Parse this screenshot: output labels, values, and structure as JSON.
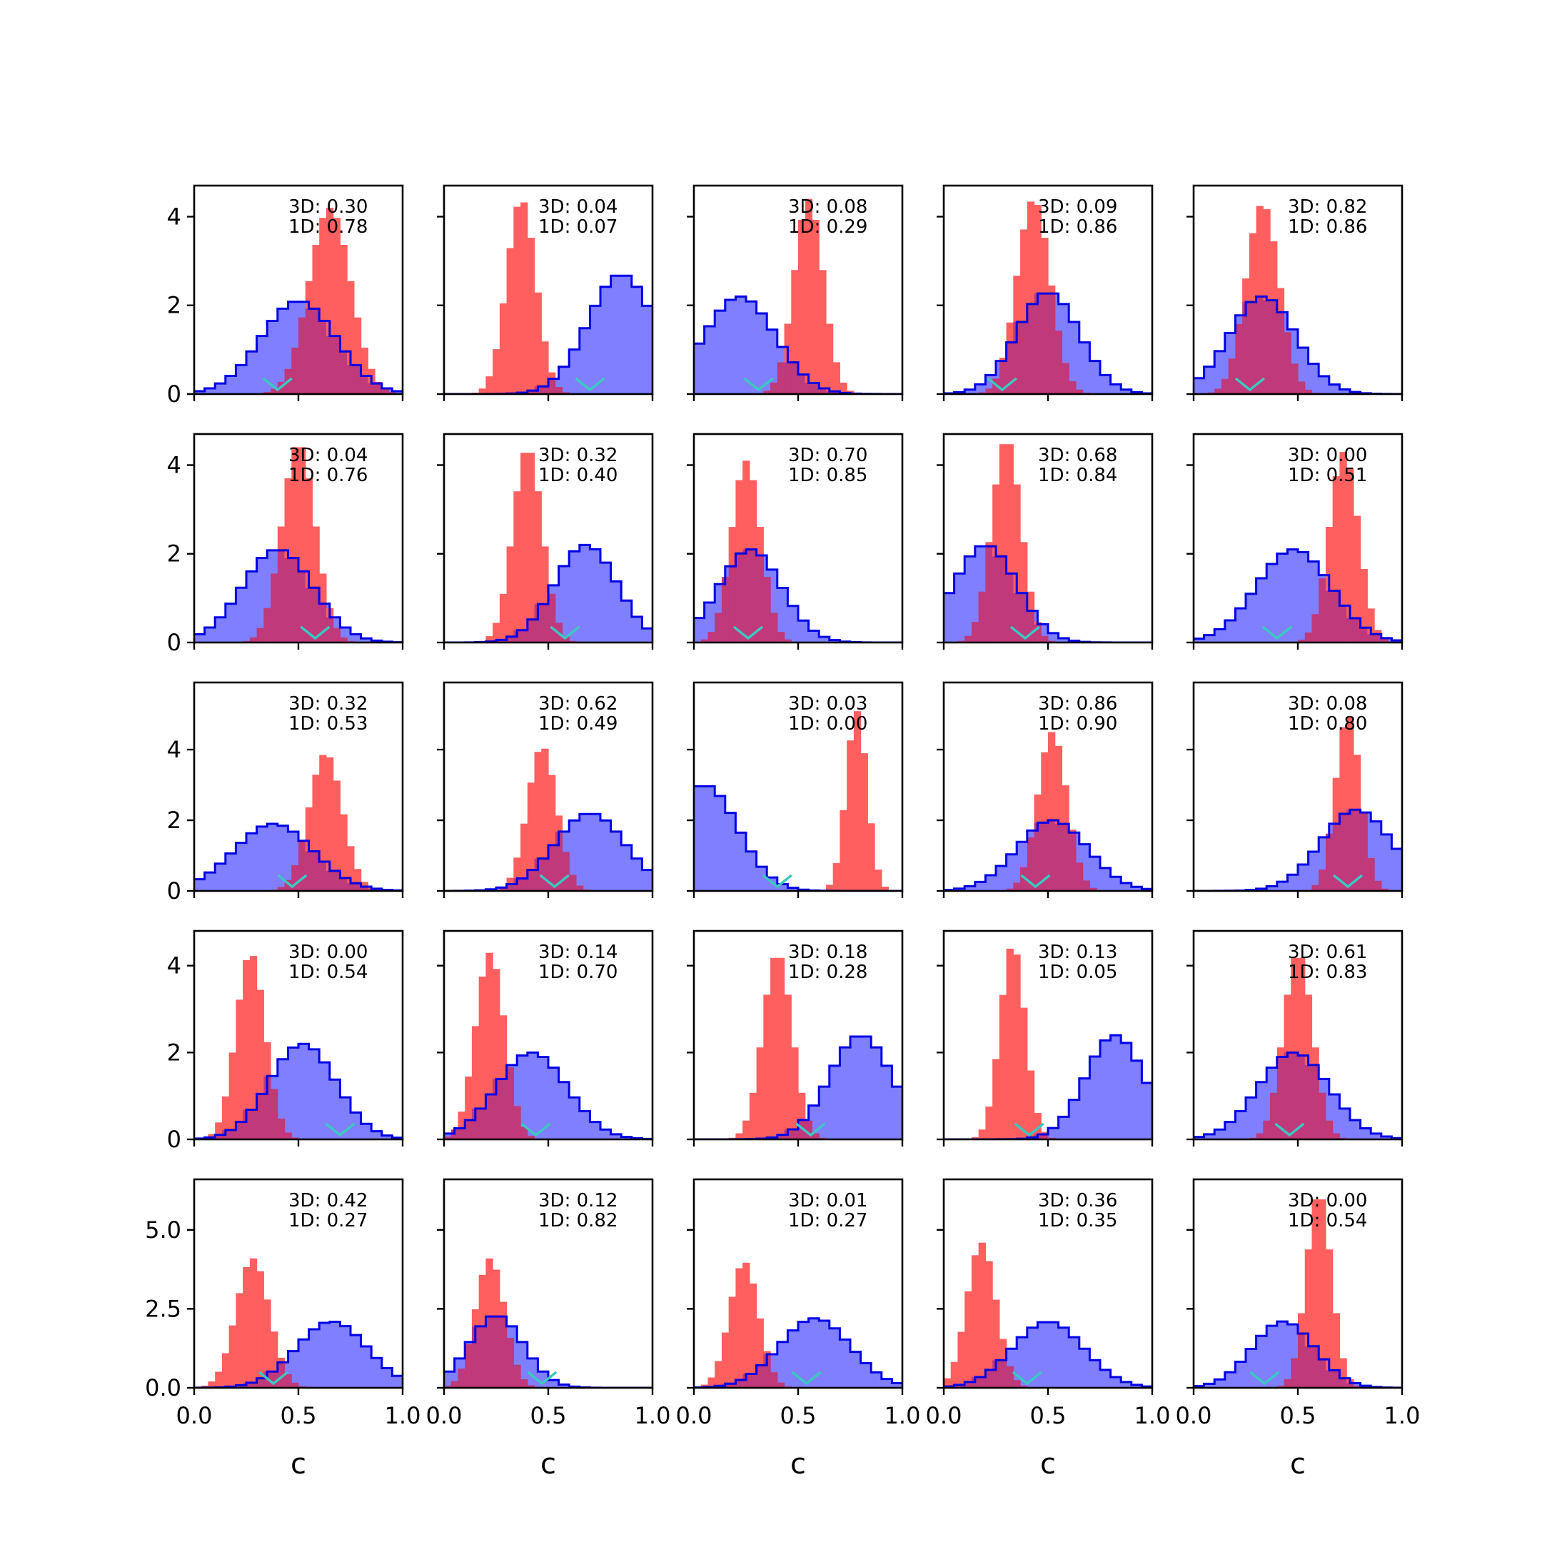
{
  "colors": {
    "blue_fill": "#7f7fff",
    "blue_edge": "#0000e6",
    "red_fill": "#ff5f5f",
    "overlap": "#c0397a",
    "overlap_edge": "#7a0a7a",
    "marker": "#3cc8c0"
  },
  "chart_data": {
    "type": "histogram-grid",
    "rows": 5,
    "cols": 5,
    "xlabel": "c",
    "xlim": [
      0,
      1
    ],
    "xticks": [
      "0.0",
      "0.5",
      "1.0"
    ],
    "row_axes": [
      {
        "ylim": [
          0,
          4.7
        ],
        "yticks": [
          "0",
          "2",
          "4"
        ],
        "ytick_values": [
          0,
          2,
          4
        ]
      },
      {
        "ylim": [
          0,
          4.7
        ],
        "yticks": [
          "0",
          "2",
          "4"
        ],
        "ytick_values": [
          0,
          2,
          4
        ]
      },
      {
        "ylim": [
          0,
          5.9
        ],
        "yticks": [
          "0",
          "2",
          "4"
        ],
        "ytick_values": [
          0,
          2,
          4
        ]
      },
      {
        "ylim": [
          0,
          4.8
        ],
        "yticks": [
          "0",
          "2",
          "4"
        ],
        "ytick_values": [
          0,
          2,
          4
        ]
      },
      {
        "ylim": [
          0,
          6.6
        ],
        "yticks": [
          "0.0",
          "2.5",
          "5.0"
        ],
        "ytick_values": [
          0,
          2.5,
          5
        ]
      }
    ],
    "series": [
      {
        "name": "3D",
        "color": "blue",
        "style": "step-filled"
      },
      {
        "name": "1D",
        "color": "red",
        "style": "bar-filled"
      }
    ],
    "panels": [
      {
        "label3d": "3D: 0.30",
        "label1d": "1D: 0.78",
        "blue": {
          "mu": 0.5,
          "sd": 0.18,
          "peak": 2.1
        },
        "red": {
          "mu": 0.65,
          "sd": 0.1,
          "peak": 4.2
        },
        "marker": 0.4
      },
      {
        "label3d": "3D: 0.04",
        "label1d": "1D: 0.07",
        "blue": {
          "mu": 0.85,
          "sd": 0.16,
          "peak": 2.7
        },
        "red": {
          "mu": 0.37,
          "sd": 0.07,
          "peak": 4.4
        },
        "marker": 0.7
      },
      {
        "label3d": "3D: 0.08",
        "label1d": "1D: 0.29",
        "blue": {
          "mu": 0.22,
          "sd": 0.17,
          "peak": 2.2
        },
        "red": {
          "mu": 0.55,
          "sd": 0.07,
          "peak": 4.4
        },
        "marker": 0.31
      },
      {
        "label3d": "3D: 0.09",
        "label1d": "1D: 0.86",
        "blue": {
          "mu": 0.5,
          "sd": 0.15,
          "peak": 2.3
        },
        "red": {
          "mu": 0.43,
          "sd": 0.08,
          "peak": 4.4
        },
        "marker": 0.28
      },
      {
        "label3d": "3D: 0.82",
        "label1d": "1D: 0.86",
        "blue": {
          "mu": 0.33,
          "sd": 0.16,
          "peak": 2.2
        },
        "red": {
          "mu": 0.33,
          "sd": 0.08,
          "peak": 4.3
        },
        "marker": 0.27
      },
      {
        "label3d": "3D: 0.04",
        "label1d": "1D: 0.76",
        "blue": {
          "mu": 0.4,
          "sd": 0.17,
          "peak": 2.1
        },
        "red": {
          "mu": 0.5,
          "sd": 0.08,
          "peak": 4.5
        },
        "marker": 0.58
      },
      {
        "label3d": "3D: 0.32",
        "label1d": "1D: 0.40",
        "blue": {
          "mu": 0.68,
          "sd": 0.15,
          "peak": 2.2
        },
        "red": {
          "mu": 0.4,
          "sd": 0.07,
          "peak": 4.4
        },
        "marker": 0.58
      },
      {
        "label3d": "3D: 0.70",
        "label1d": "1D: 0.85",
        "blue": {
          "mu": 0.27,
          "sd": 0.15,
          "peak": 2.1
        },
        "red": {
          "mu": 0.25,
          "sd": 0.07,
          "peak": 4.1
        },
        "marker": 0.26
      },
      {
        "label3d": "3D: 0.68",
        "label1d": "1D: 0.84",
        "blue": {
          "mu": 0.2,
          "sd": 0.15,
          "peak": 2.2
        },
        "red": {
          "mu": 0.3,
          "sd": 0.07,
          "peak": 4.6
        },
        "marker": 0.39
      },
      {
        "label3d": "3D: 0.00",
        "label1d": "1D: 0.51",
        "blue": {
          "mu": 0.48,
          "sd": 0.18,
          "peak": 2.1
        },
        "red": {
          "mu": 0.72,
          "sd": 0.07,
          "peak": 4.3
        },
        "marker": 0.4
      },
      {
        "label3d": "3D: 0.32",
        "label1d": "1D: 0.53",
        "blue": {
          "mu": 0.38,
          "sd": 0.19,
          "peak": 1.9
        },
        "red": {
          "mu": 0.63,
          "sd": 0.08,
          "peak": 3.9
        },
        "marker": 0.47
      },
      {
        "label3d": "3D: 0.62",
        "label1d": "1D: 0.49",
        "blue": {
          "mu": 0.7,
          "sd": 0.17,
          "peak": 2.2
        },
        "red": {
          "mu": 0.47,
          "sd": 0.07,
          "peak": 4.1
        },
        "marker": 0.53
      },
      {
        "label3d": "3D: 0.03",
        "label1d": "1D: 0.00",
        "blue": {
          "mu": 0.05,
          "sd": 0.16,
          "peak": 3.0
        },
        "red": {
          "mu": 0.78,
          "sd": 0.05,
          "peak": 5.1
        },
        "marker": 0.4
      },
      {
        "label3d": "3D: 0.86",
        "label1d": "1D: 0.90",
        "blue": {
          "mu": 0.52,
          "sd": 0.17,
          "peak": 2.0
        },
        "red": {
          "mu": 0.52,
          "sd": 0.07,
          "peak": 4.5
        },
        "marker": 0.44
      },
      {
        "label3d": "3D: 0.08",
        "label1d": "1D: 0.80",
        "blue": {
          "mu": 0.78,
          "sd": 0.17,
          "peak": 2.3
        },
        "red": {
          "mu": 0.74,
          "sd": 0.06,
          "peak": 5.0
        },
        "marker": 0.74
      },
      {
        "label3d": "3D: 0.00",
        "label1d": "1D: 0.54",
        "blue": {
          "mu": 0.52,
          "sd": 0.16,
          "peak": 2.2
        },
        "red": {
          "mu": 0.27,
          "sd": 0.07,
          "peak": 4.3
        },
        "marker": 0.7
      },
      {
        "label3d": "3D: 0.14",
        "label1d": "1D: 0.70",
        "blue": {
          "mu": 0.42,
          "sd": 0.17,
          "peak": 2.0
        },
        "red": {
          "mu": 0.22,
          "sd": 0.07,
          "peak": 4.3
        },
        "marker": 0.44
      },
      {
        "label3d": "3D: 0.18",
        "label1d": "1D: 0.28",
        "blue": {
          "mu": 0.8,
          "sd": 0.15,
          "peak": 2.4
        },
        "red": {
          "mu": 0.4,
          "sd": 0.07,
          "peak": 4.3
        },
        "marker": 0.56
      },
      {
        "label3d": "3D: 0.13",
        "label1d": "1D: 0.05",
        "blue": {
          "mu": 0.82,
          "sd": 0.14,
          "peak": 2.4
        },
        "red": {
          "mu": 0.33,
          "sd": 0.06,
          "peak": 4.5
        },
        "marker": 0.41
      },
      {
        "label3d": "3D: 0.61",
        "label1d": "1D: 0.83",
        "blue": {
          "mu": 0.48,
          "sd": 0.17,
          "peak": 2.0
        },
        "red": {
          "mu": 0.5,
          "sd": 0.07,
          "peak": 4.3
        },
        "marker": 0.46
      },
      {
        "label3d": "3D: 0.42",
        "label1d": "1D: 0.27",
        "blue": {
          "mu": 0.66,
          "sd": 0.17,
          "peak": 2.1
        },
        "red": {
          "mu": 0.28,
          "sd": 0.08,
          "peak": 4.1
        },
        "marker": 0.38
      },
      {
        "label3d": "3D: 0.12",
        "label1d": "1D: 0.82",
        "blue": {
          "mu": 0.25,
          "sd": 0.13,
          "peak": 2.3
        },
        "red": {
          "mu": 0.22,
          "sd": 0.07,
          "peak": 4.1
        },
        "marker": 0.47
      },
      {
        "label3d": "3D: 0.01",
        "label1d": "1D: 0.27",
        "blue": {
          "mu": 0.58,
          "sd": 0.17,
          "peak": 2.2
        },
        "red": {
          "mu": 0.24,
          "sd": 0.07,
          "peak": 4.0
        },
        "marker": 0.54
      },
      {
        "label3d": "3D: 0.36",
        "label1d": "1D: 0.35",
        "blue": {
          "mu": 0.5,
          "sd": 0.17,
          "peak": 2.1
        },
        "red": {
          "mu": 0.18,
          "sd": 0.07,
          "peak": 4.6
        },
        "marker": 0.4
      },
      {
        "label3d": "3D: 0.00",
        "label1d": "1D: 0.54",
        "blue": {
          "mu": 0.43,
          "sd": 0.15,
          "peak": 2.1
        },
        "red": {
          "mu": 0.6,
          "sd": 0.06,
          "peak": 6.2
        },
        "marker": 0.34
      }
    ]
  }
}
